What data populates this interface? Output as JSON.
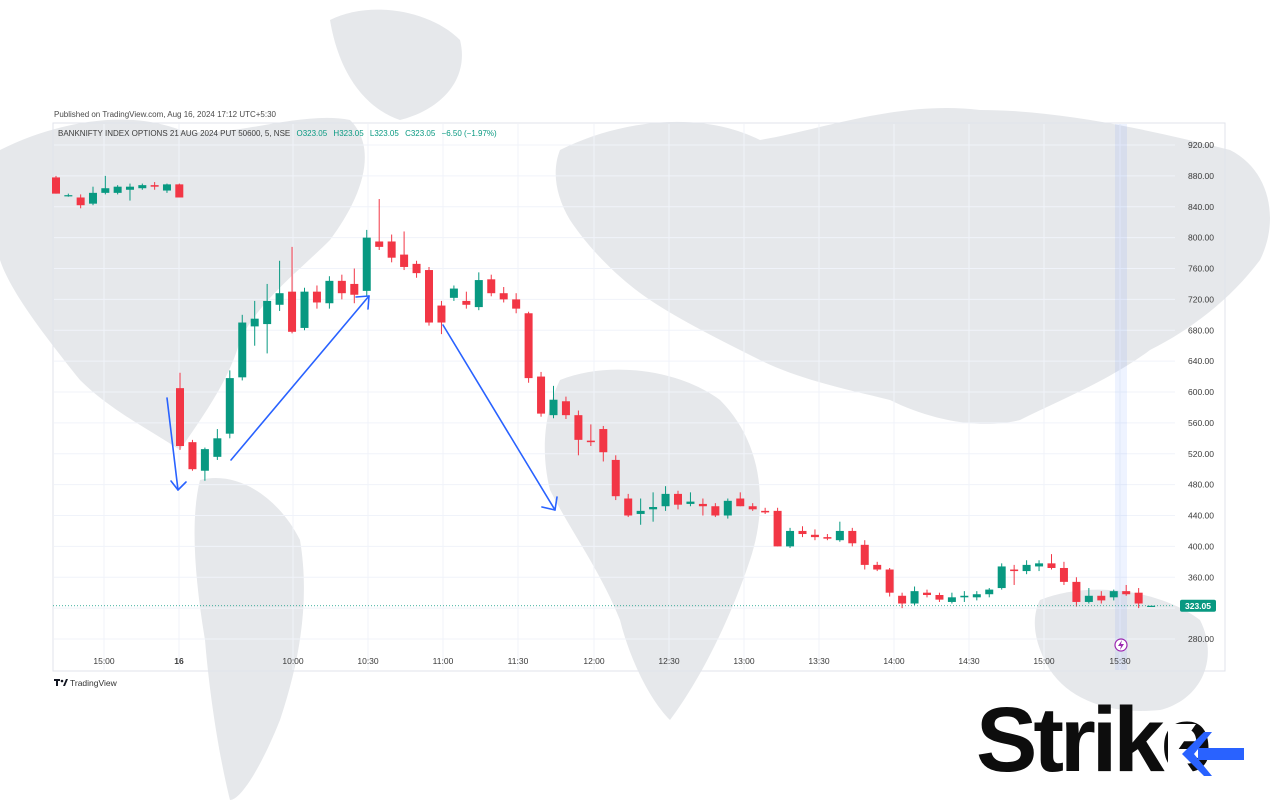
{
  "header": {
    "published": "Published on TradingView.com, Aug 16, 2024 17:12 UTC+5:30",
    "symbol": "BANKNIFTY INDEX OPTIONS 21 AUG 2024 PUT 50600, 5, NSE",
    "ohlc": {
      "open": "O323.05",
      "high": "H323.05",
      "low": "L323.05",
      "close": "C323.05",
      "change": "−6.50 (−1.97%)"
    }
  },
  "branding": {
    "tradingview": "TradingView",
    "logo_text": "Strike"
  },
  "colors": {
    "up": "#089981",
    "down": "#f23645",
    "annotation_arrow": "#2962ff",
    "price_tag": "#089981",
    "logo_accent": "#2962ff"
  },
  "chart_data": {
    "type": "candlestick",
    "title": "BANKNIFTY INDEX OPTIONS 21 AUG 2024 PUT 50600, 5, NSE",
    "interval": "5",
    "ylim": [
      250,
      945
    ],
    "y_ticks": [
      "920.00",
      "880.00",
      "840.00",
      "800.00",
      "760.00",
      "720.00",
      "680.00",
      "640.00",
      "600.00",
      "560.00",
      "520.00",
      "480.00",
      "440.00",
      "400.00",
      "360.00",
      "320.00",
      "280.00"
    ],
    "x_ticks": [
      "15:00",
      "16",
      "10:00",
      "10:30",
      "11:00",
      "11:30",
      "12:00",
      "12:30",
      "13:00",
      "13:30",
      "14:00",
      "14:30",
      "15:00",
      "15:30"
    ],
    "last_price": "323.05",
    "grid": true,
    "candles": [
      {
        "o": 878,
        "h": 880,
        "l": 857,
        "c": 857
      },
      {
        "o": 855,
        "h": 857,
        "l": 853,
        "c": 855
      },
      {
        "o": 852,
        "h": 856,
        "l": 838,
        "c": 842
      },
      {
        "o": 844,
        "h": 866,
        "l": 842,
        "c": 858
      },
      {
        "o": 858,
        "h": 880,
        "l": 856,
        "c": 864
      },
      {
        "o": 858,
        "h": 868,
        "l": 856,
        "c": 866
      },
      {
        "o": 862,
        "h": 870,
        "l": 848,
        "c": 866
      },
      {
        "o": 864,
        "h": 870,
        "l": 862,
        "c": 868
      },
      {
        "o": 868,
        "h": 872,
        "l": 862,
        "c": 866
      },
      {
        "o": 861,
        "h": 870,
        "l": 858,
        "c": 869
      },
      {
        "o": 869,
        "h": 870,
        "l": 852,
        "c": 852
      },
      {
        "o": 605,
        "h": 625,
        "l": 525,
        "c": 530
      },
      {
        "o": 535,
        "h": 538,
        "l": 498,
        "c": 500
      },
      {
        "o": 498,
        "h": 528,
        "l": 485,
        "c": 526
      },
      {
        "o": 516,
        "h": 552,
        "l": 512,
        "c": 540
      },
      {
        "o": 546,
        "h": 628,
        "l": 540,
        "c": 618
      },
      {
        "o": 619,
        "h": 700,
        "l": 615,
        "c": 690
      },
      {
        "o": 685,
        "h": 718,
        "l": 660,
        "c": 695
      },
      {
        "o": 688,
        "h": 740,
        "l": 650,
        "c": 718
      },
      {
        "o": 713,
        "h": 770,
        "l": 705,
        "c": 728
      },
      {
        "o": 730,
        "h": 788,
        "l": 676,
        "c": 678
      },
      {
        "o": 683,
        "h": 735,
        "l": 680,
        "c": 730
      },
      {
        "o": 730,
        "h": 738,
        "l": 708,
        "c": 716
      },
      {
        "o": 715,
        "h": 750,
        "l": 708,
        "c": 744
      },
      {
        "o": 744,
        "h": 752,
        "l": 720,
        "c": 728
      },
      {
        "o": 740,
        "h": 760,
        "l": 715,
        "c": 726
      },
      {
        "o": 731,
        "h": 810,
        "l": 724,
        "c": 800
      },
      {
        "o": 795,
        "h": 850,
        "l": 784,
        "c": 788
      },
      {
        "o": 795,
        "h": 804,
        "l": 768,
        "c": 774
      },
      {
        "o": 778,
        "h": 808,
        "l": 758,
        "c": 762
      },
      {
        "o": 766,
        "h": 770,
        "l": 748,
        "c": 754
      },
      {
        "o": 758,
        "h": 762,
        "l": 686,
        "c": 690
      },
      {
        "o": 712,
        "h": 718,
        "l": 675,
        "c": 690
      },
      {
        "o": 722,
        "h": 738,
        "l": 718,
        "c": 734
      },
      {
        "o": 718,
        "h": 730,
        "l": 708,
        "c": 713
      },
      {
        "o": 710,
        "h": 755,
        "l": 706,
        "c": 745
      },
      {
        "o": 746,
        "h": 752,
        "l": 724,
        "c": 728
      },
      {
        "o": 728,
        "h": 736,
        "l": 716,
        "c": 720
      },
      {
        "o": 720,
        "h": 728,
        "l": 702,
        "c": 708
      },
      {
        "o": 702,
        "h": 704,
        "l": 612,
        "c": 618
      },
      {
        "o": 620,
        "h": 626,
        "l": 568,
        "c": 572
      },
      {
        "o": 570,
        "h": 608,
        "l": 566,
        "c": 590
      },
      {
        "o": 588,
        "h": 594,
        "l": 565,
        "c": 570
      },
      {
        "o": 570,
        "h": 576,
        "l": 518,
        "c": 538
      },
      {
        "o": 537,
        "h": 558,
        "l": 530,
        "c": 535
      },
      {
        "o": 552,
        "h": 556,
        "l": 510,
        "c": 522
      },
      {
        "o": 512,
        "h": 518,
        "l": 460,
        "c": 465
      },
      {
        "o": 462,
        "h": 468,
        "l": 438,
        "c": 440
      },
      {
        "o": 442,
        "h": 462,
        "l": 428,
        "c": 446
      },
      {
        "o": 448,
        "h": 470,
        "l": 432,
        "c": 451
      },
      {
        "o": 452,
        "h": 478,
        "l": 446,
        "c": 468
      },
      {
        "o": 468,
        "h": 472,
        "l": 448,
        "c": 454
      },
      {
        "o": 455,
        "h": 470,
        "l": 452,
        "c": 458
      },
      {
        "o": 455,
        "h": 462,
        "l": 440,
        "c": 452
      },
      {
        "o": 452,
        "h": 456,
        "l": 438,
        "c": 440
      },
      {
        "o": 440,
        "h": 462,
        "l": 436,
        "c": 459
      },
      {
        "o": 462,
        "h": 470,
        "l": 452,
        "c": 452
      },
      {
        "o": 452,
        "h": 456,
        "l": 446,
        "c": 448
      },
      {
        "o": 446,
        "h": 450,
        "l": 442,
        "c": 444
      },
      {
        "o": 446,
        "h": 450,
        "l": 400,
        "c": 400
      },
      {
        "o": 400,
        "h": 424,
        "l": 398,
        "c": 420
      },
      {
        "o": 420,
        "h": 426,
        "l": 412,
        "c": 416
      },
      {
        "o": 415,
        "h": 422,
        "l": 408,
        "c": 412
      },
      {
        "o": 412,
        "h": 416,
        "l": 408,
        "c": 410
      },
      {
        "o": 408,
        "h": 432,
        "l": 406,
        "c": 420
      },
      {
        "o": 420,
        "h": 424,
        "l": 400,
        "c": 404
      },
      {
        "o": 402,
        "h": 408,
        "l": 370,
        "c": 376
      },
      {
        "o": 376,
        "h": 380,
        "l": 368,
        "c": 370
      },
      {
        "o": 370,
        "h": 372,
        "l": 335,
        "c": 340
      },
      {
        "o": 336,
        "h": 340,
        "l": 320,
        "c": 326
      },
      {
        "o": 326,
        "h": 348,
        "l": 324,
        "c": 342
      },
      {
        "o": 340,
        "h": 344,
        "l": 334,
        "c": 337
      },
      {
        "o": 337,
        "h": 340,
        "l": 328,
        "c": 331
      },
      {
        "o": 328,
        "h": 340,
        "l": 326,
        "c": 334
      },
      {
        "o": 334,
        "h": 342,
        "l": 328,
        "c": 336
      },
      {
        "o": 334,
        "h": 342,
        "l": 330,
        "c": 338
      },
      {
        "o": 338,
        "h": 346,
        "l": 334,
        "c": 344
      },
      {
        "o": 346,
        "h": 378,
        "l": 344,
        "c": 374
      },
      {
        "o": 370,
        "h": 376,
        "l": 350,
        "c": 368
      },
      {
        "o": 368,
        "h": 382,
        "l": 364,
        "c": 376
      },
      {
        "o": 374,
        "h": 382,
        "l": 368,
        "c": 378
      },
      {
        "o": 378,
        "h": 390,
        "l": 370,
        "c": 372
      },
      {
        "o": 372,
        "h": 380,
        "l": 350,
        "c": 354
      },
      {
        "o": 354,
        "h": 360,
        "l": 322,
        "c": 328
      },
      {
        "o": 328,
        "h": 346,
        "l": 326,
        "c": 336
      },
      {
        "o": 336,
        "h": 342,
        "l": 326,
        "c": 330
      },
      {
        "o": 334,
        "h": 344,
        "l": 330,
        "c": 342
      },
      {
        "o": 342,
        "h": 350,
        "l": 336,
        "c": 338
      },
      {
        "o": 340,
        "h": 346,
        "l": 320,
        "c": 326
      },
      {
        "o": 323.05,
        "h": 323.05,
        "l": 323.05,
        "c": 323.05
      }
    ]
  }
}
